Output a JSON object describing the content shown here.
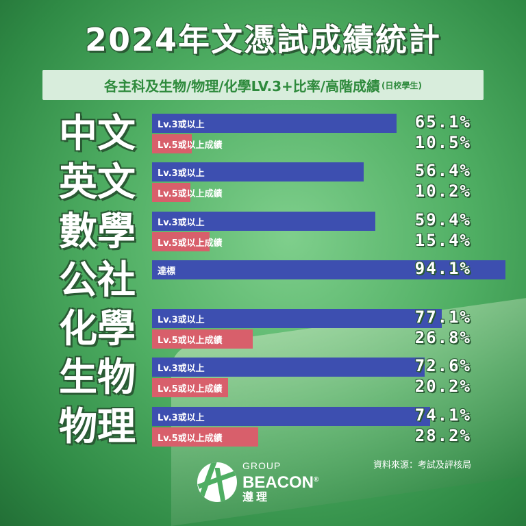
{
  "title": "2024年文憑試成績統計",
  "subtitle": "各主科及生物/物理/化學LV.3+比率/高階成績",
  "subtitle_note": "(日校學生)",
  "source": "資料來源：考試及評核局",
  "logo": {
    "group": "GROUP",
    "name": "BEACON",
    "reg": "®",
    "chinese": "遵理"
  },
  "colors": {
    "lv3": "#3d4fb0",
    "lv5": "#d85f6b"
  },
  "chart_data": {
    "type": "bar",
    "orientation": "horizontal",
    "unit": "%",
    "xlim": [
      0,
      100
    ],
    "groups": [
      {
        "subject": "中文",
        "bars": [
          {
            "label": "Lv.3或以上",
            "value": 65.1,
            "display": "65.1%",
            "color": "lv3"
          },
          {
            "label": "Lv.5或以上成績",
            "value": 10.5,
            "display": "10.5%",
            "color": "lv5"
          }
        ]
      },
      {
        "subject": "英文",
        "bars": [
          {
            "label": "Lv.3或以上",
            "value": 56.4,
            "display": "56.4%",
            "color": "lv3"
          },
          {
            "label": "Lv.5或以上成績",
            "value": 10.2,
            "display": "10.2%",
            "color": "lv5"
          }
        ]
      },
      {
        "subject": "數學",
        "bars": [
          {
            "label": "Lv.3或以上",
            "value": 59.4,
            "display": "59.4%",
            "color": "lv3"
          },
          {
            "label": "Lv.5或以上成績",
            "value": 15.4,
            "display": "15.4%",
            "color": "lv5"
          }
        ]
      },
      {
        "subject": "公社",
        "bars": [
          {
            "label": "達標",
            "value": 94.1,
            "display": "94.1%",
            "color": "lv3"
          }
        ]
      },
      {
        "subject": "化學",
        "bars": [
          {
            "label": "Lv.3或以上",
            "value": 77.1,
            "display": "77.1%",
            "color": "lv3"
          },
          {
            "label": "Lv.5或以上成績",
            "value": 26.8,
            "display": "26.8%",
            "color": "lv5"
          }
        ]
      },
      {
        "subject": "生物",
        "bars": [
          {
            "label": "Lv.3或以上",
            "value": 72.6,
            "display": "72.6%",
            "color": "lv3"
          },
          {
            "label": "Lv.5或以上成績",
            "value": 20.2,
            "display": "20.2%",
            "color": "lv5"
          }
        ]
      },
      {
        "subject": "物理",
        "bars": [
          {
            "label": "Lv.3或以上",
            "value": 74.1,
            "display": "74.1%",
            "color": "lv3"
          },
          {
            "label": "Lv.5或以上成績",
            "value": 28.2,
            "display": "28.2%",
            "color": "lv5"
          }
        ]
      }
    ]
  }
}
